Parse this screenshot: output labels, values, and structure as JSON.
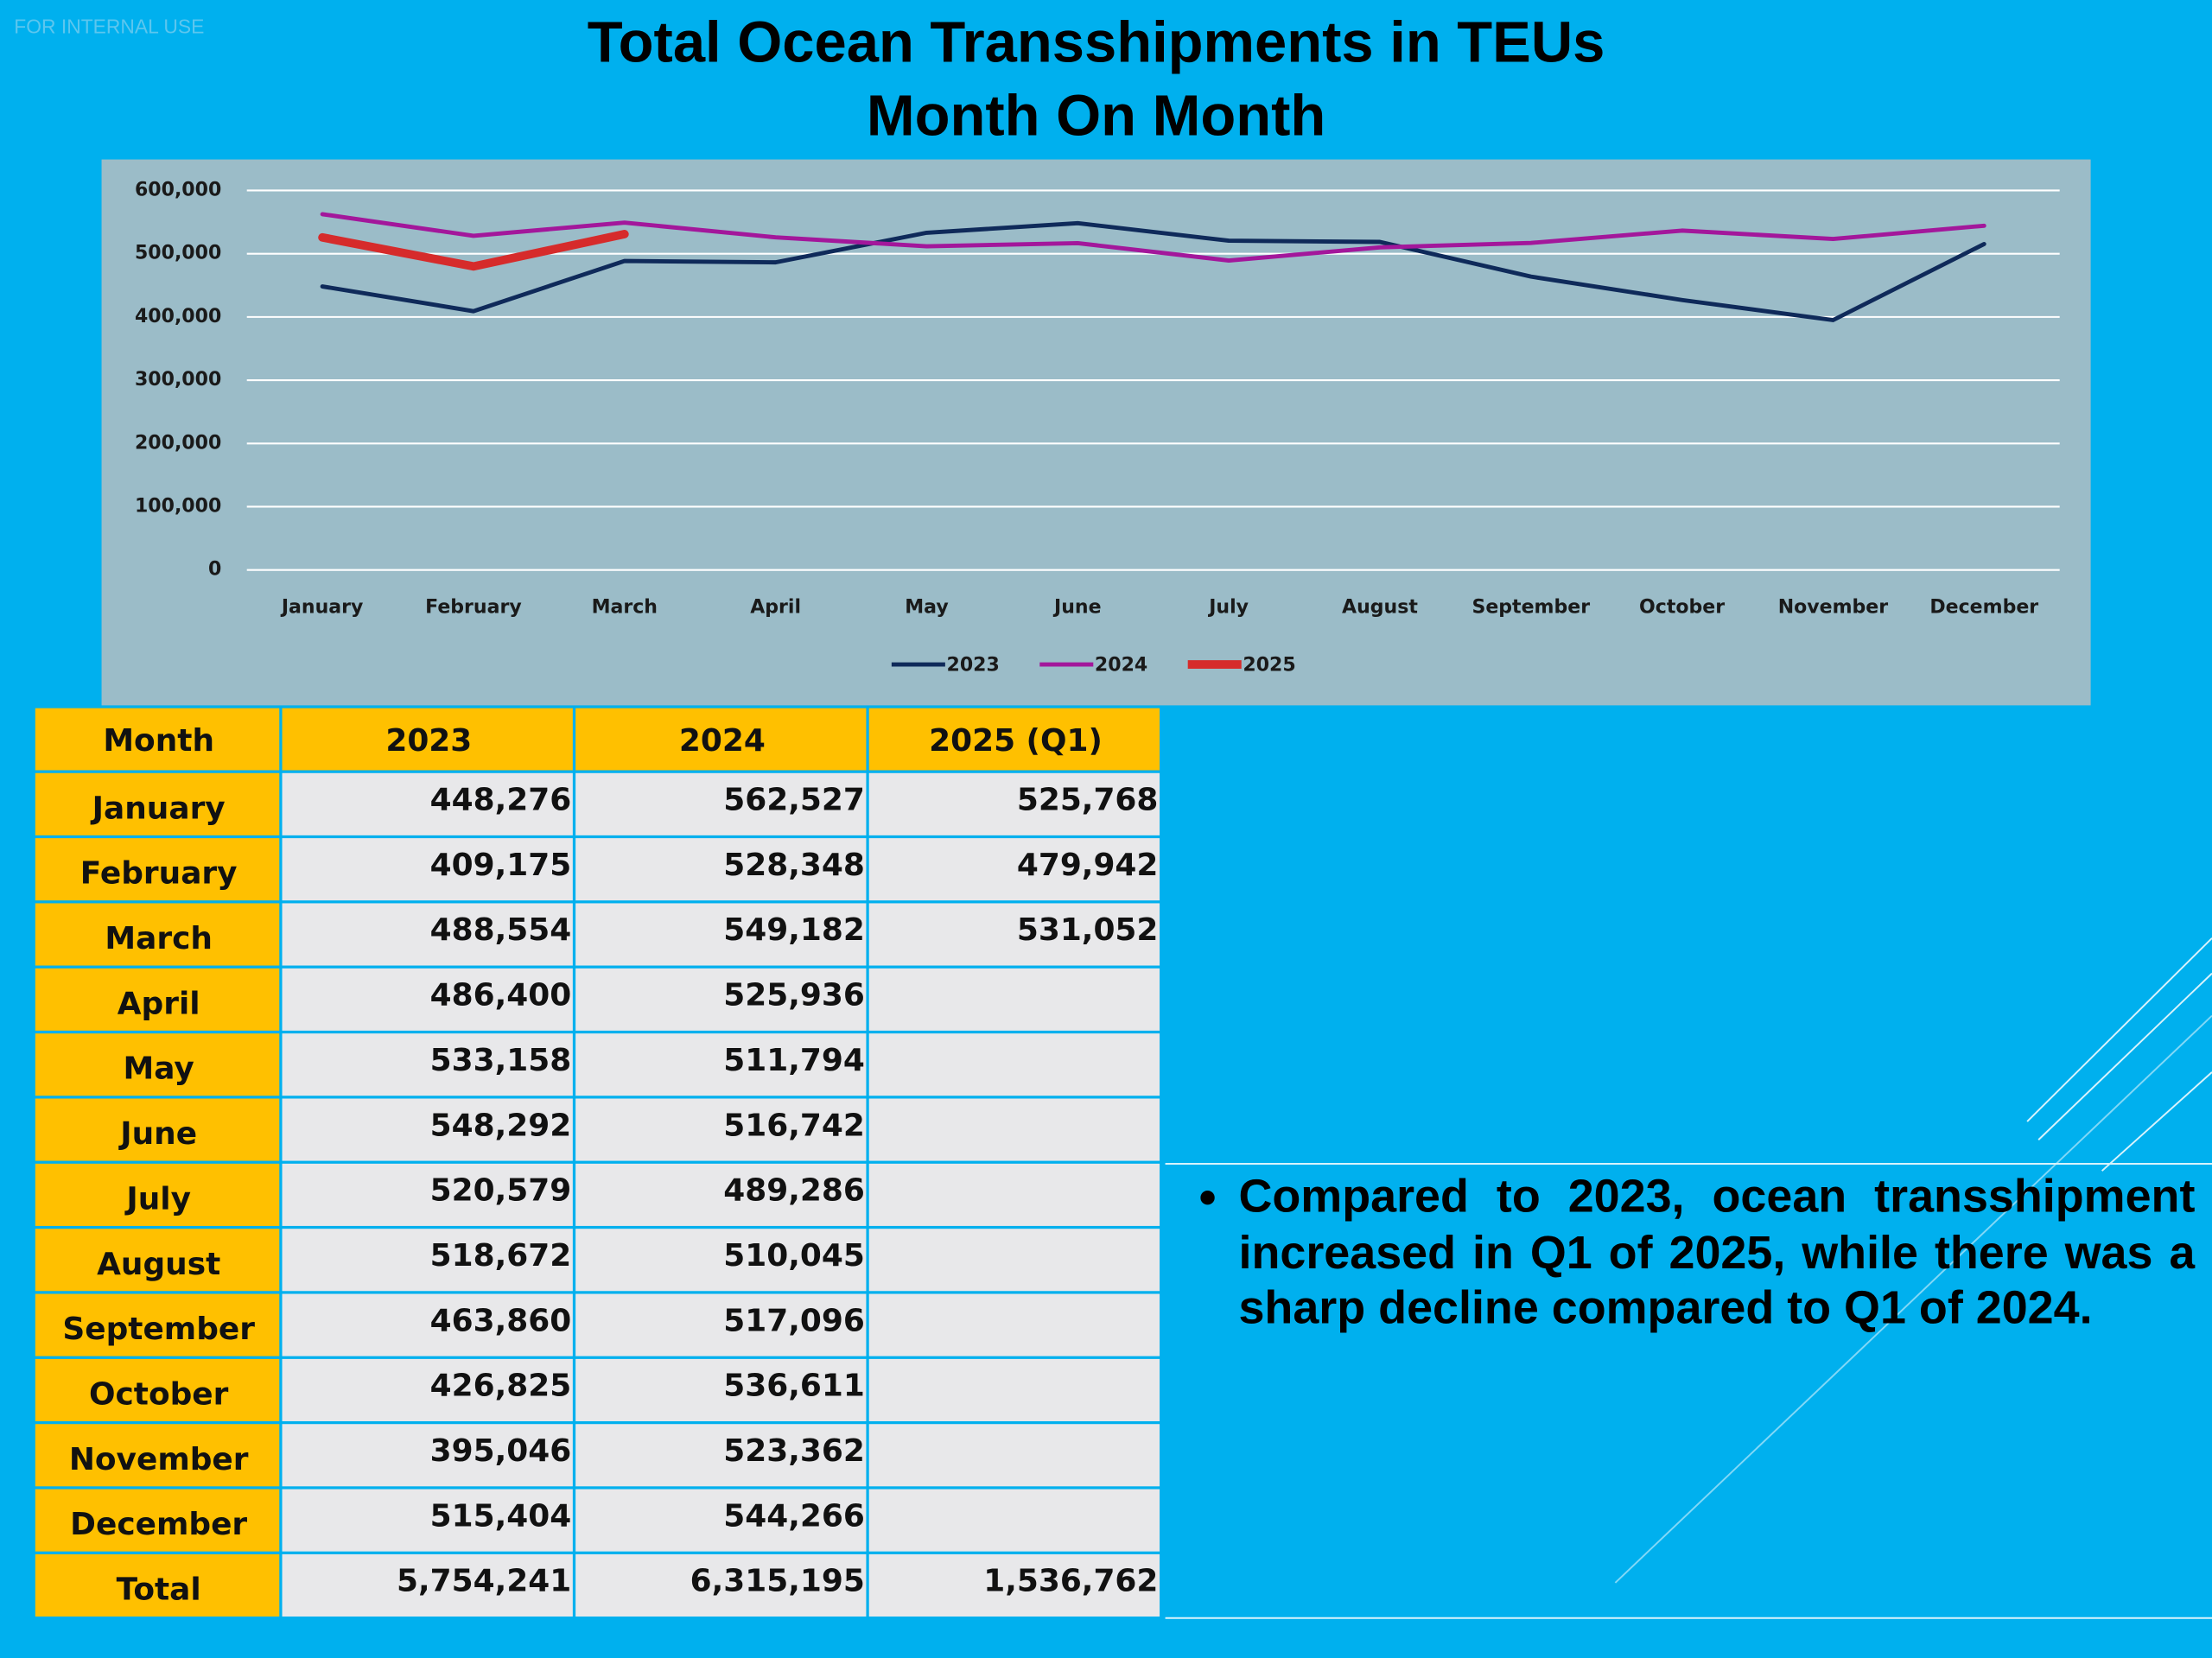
{
  "watermark": "FOR INTERNAL USE",
  "chart_data": {
    "type": "line",
    "title": "Total Ocean Transshipments in TEUs",
    "subtitle": "Month On Month",
    "categories": [
      "January",
      "February",
      "March",
      "April",
      "May",
      "June",
      "July",
      "August",
      "September",
      "October",
      "November",
      "December"
    ],
    "series": [
      {
        "name": "2023",
        "color": "#0f2a5a",
        "width": 3,
        "values": [
          448276,
          409175,
          488554,
          486400,
          533158,
          548292,
          520579,
          518672,
          463860,
          426825,
          395046,
          515404
        ]
      },
      {
        "name": "2024",
        "color": "#a3179b",
        "width": 3,
        "values": [
          562527,
          528348,
          549182,
          525936,
          511794,
          516742,
          489286,
          510045,
          517096,
          536611,
          523362,
          544266
        ]
      },
      {
        "name": "2025",
        "color": "#d62b2b",
        "width": 6,
        "values": [
          525768,
          479942,
          531052,
          null,
          null,
          null,
          null,
          null,
          null,
          null,
          null,
          null
        ]
      }
    ],
    "ylim": [
      0,
      600000
    ],
    "yticks": [
      0,
      {
        "value": 100000,
        "label": "100,000"
      },
      {
        "value": 200000,
        "label": "200,000"
      },
      {
        "value": 300000,
        "label": "300,000"
      },
      {
        "value": 400000,
        "label": "400,000"
      },
      {
        "value": 500000,
        "label": "500,000"
      },
      {
        "value": 600000,
        "label": "600,000"
      }
    ],
    "grid": true,
    "legend": "bottom"
  },
  "table": {
    "header": [
      "Month",
      "2023",
      "2024",
      "2025 (Q1)"
    ],
    "rows": [
      [
        "January",
        "448,276",
        "562,527",
        "525,768"
      ],
      [
        "February",
        "409,175",
        "528,348",
        "479,942"
      ],
      [
        "March",
        "488,554",
        "549,182",
        "531,052"
      ],
      [
        "April",
        "486,400",
        "525,936",
        null
      ],
      [
        "May",
        "533,158",
        "511,794",
        null
      ],
      [
        "June",
        "548,292",
        "516,742",
        null
      ],
      [
        "July",
        "520,579",
        "489,286",
        null
      ],
      [
        "August",
        "518,672",
        "510,045",
        null
      ],
      [
        "September",
        "463,860",
        "517,096",
        null
      ],
      [
        "October",
        "426,825",
        "536,611",
        null
      ],
      [
        "November",
        "395,046",
        "523,362",
        null
      ],
      [
        "December",
        "515,404",
        "544,266",
        null
      ]
    ],
    "total": [
      "Total",
      "5,754,241",
      "6,315,195",
      "1,536,762"
    ]
  },
  "bullet": "Compared to 2023, ocean transshipment increased in Q1 of 2025, while there was a sharp decline compared to Q1 of 2024."
}
